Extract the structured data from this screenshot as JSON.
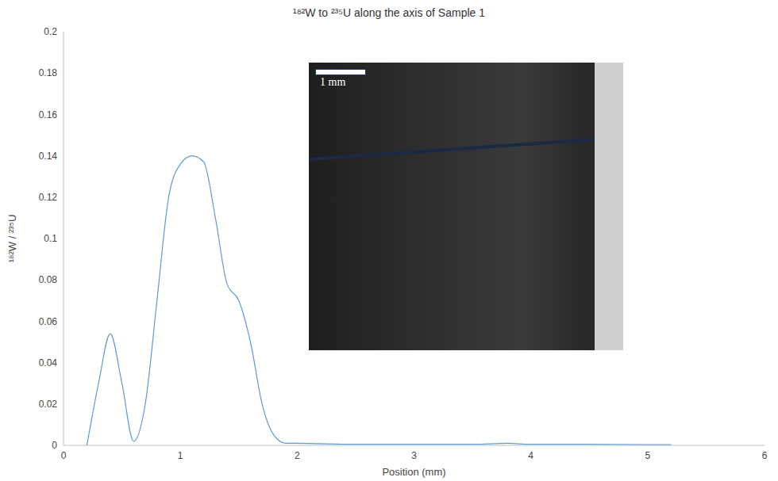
{
  "chart_data": {
    "type": "line",
    "title": "¹⁸²W to ²³⁵U along the axis of Sample 1",
    "x_label": "Position (mm)",
    "y_label": "¹⁸²W / ²³⁵U",
    "x": [
      0.2,
      0.3,
      0.4,
      0.5,
      0.6,
      0.7,
      0.8,
      0.9,
      1.0,
      1.1,
      1.2,
      1.3,
      1.4,
      1.5,
      1.6,
      1.7,
      1.8,
      1.9,
      2.0,
      2.5,
      3.0,
      3.5,
      3.8,
      4.0,
      4.5,
      5.0,
      5.2
    ],
    "values": [
      0,
      0.03,
      0.054,
      0.03,
      0.002,
      0.02,
      0.07,
      0.12,
      0.136,
      0.14,
      0.137,
      0.11,
      0.078,
      0.07,
      0.05,
      0.02,
      0.005,
      0.001,
      0.001,
      0.0005,
      0.0005,
      0.0005,
      0.001,
      0.0005,
      0.0005,
      0.0003,
      0.0003
    ],
    "color": "#5b9bd5",
    "xlim": [
      0,
      6
    ],
    "xticks": [
      0,
      1,
      2,
      3,
      4,
      5,
      6
    ],
    "ylim": [
      0,
      0.2
    ],
    "yticks": [
      0,
      0.02,
      0.04,
      0.06,
      0.08,
      0.1,
      0.12,
      0.14,
      0.16,
      0.18,
      0.2
    ],
    "grid": false,
    "annotations": [
      "1 mm"
    ]
  }
}
